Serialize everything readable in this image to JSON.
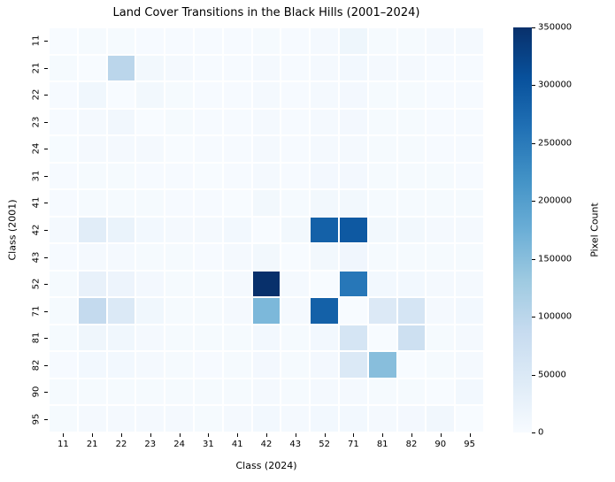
{
  "title": "Land Cover Transitions in the Black Hills (2001–2024)",
  "chart_data": {
    "type": "heatmap",
    "title": "Land Cover Transitions in the Black Hills (2001–2024)",
    "xlabel": "Class (2024)",
    "ylabel": "Class (2001)",
    "colorbar_label": "Pixel Count",
    "x_categories": [
      "11",
      "21",
      "22",
      "23",
      "24",
      "31",
      "41",
      "42",
      "43",
      "52",
      "71",
      "81",
      "82",
      "90",
      "95"
    ],
    "y_categories": [
      "11",
      "21",
      "22",
      "23",
      "24",
      "31",
      "41",
      "42",
      "43",
      "52",
      "71",
      "81",
      "82",
      "90",
      "95"
    ],
    "vmin": 0,
    "vmax": 350000,
    "colorbar_ticks": [
      0,
      50000,
      100000,
      150000,
      200000,
      250000,
      300000,
      350000
    ],
    "grid_line_color": "#ffffff",
    "colorscale": {
      "name": "Blues",
      "anchors": [
        [
          0.0,
          "#f7fbff"
        ],
        [
          0.125,
          "#deebf7"
        ],
        [
          0.25,
          "#c6dbef"
        ],
        [
          0.375,
          "#9ecae1"
        ],
        [
          0.5,
          "#6baed6"
        ],
        [
          0.625,
          "#4292c6"
        ],
        [
          0.75,
          "#2171b5"
        ],
        [
          0.875,
          "#08519c"
        ],
        [
          1.0,
          "#08306b"
        ]
      ]
    },
    "values": [
      [
        0,
        3000,
        3000,
        2000,
        2000,
        2000,
        2000,
        4000,
        2000,
        6000,
        15000,
        3000,
        3000,
        5000,
        6000
      ],
      [
        3000,
        0,
        100000,
        9000,
        6000,
        2000,
        2000,
        5000,
        2000,
        6000,
        8000,
        5000,
        5000,
        2000,
        2000
      ],
      [
        2000,
        12000,
        0,
        9000,
        4000,
        2000,
        2000,
        5000,
        2000,
        5000,
        7000,
        4000,
        4000,
        2000,
        2000
      ],
      [
        2000,
        6000,
        10000,
        0,
        4000,
        2000,
        2000,
        6000,
        2000,
        6000,
        7000,
        4000,
        4000,
        2000,
        2000
      ],
      [
        1000,
        5000,
        6000,
        5000,
        0,
        2000,
        2000,
        5000,
        2000,
        5000,
        6000,
        3000,
        3000,
        2000,
        2000
      ],
      [
        2000,
        3000,
        3000,
        2000,
        2000,
        0,
        2000,
        6000,
        2000,
        7000,
        7000,
        3000,
        3000,
        3000,
        2000
      ],
      [
        2000,
        4000,
        4000,
        3000,
        2000,
        2000,
        0,
        9000,
        4000,
        9000,
        9000,
        4000,
        4000,
        4000,
        3000
      ],
      [
        5000,
        38000,
        22000,
        8000,
        5000,
        5000,
        8000,
        0,
        9000,
        285000,
        295000,
        9000,
        9000,
        6000,
        5000
      ],
      [
        2000,
        5000,
        5000,
        4000,
        3000,
        2000,
        5000,
        9000,
        0,
        9000,
        13000,
        4000,
        4000,
        4000,
        3000
      ],
      [
        3000,
        26000,
        18000,
        7000,
        4000,
        4000,
        5000,
        350000,
        5000,
        0,
        255000,
        8000,
        8000,
        5000,
        5000
      ],
      [
        4000,
        90000,
        50000,
        12000,
        4000,
        4000,
        5000,
        160000,
        5000,
        285000,
        0,
        48000,
        60000,
        5000,
        8000
      ],
      [
        3000,
        14000,
        12000,
        5000,
        4000,
        3000,
        4000,
        8000,
        4000,
        8000,
        60000,
        0,
        75000,
        4000,
        5000
      ],
      [
        2000,
        8000,
        8000,
        5000,
        4000,
        2000,
        4000,
        7000,
        4000,
        7000,
        50000,
        150000,
        0,
        4000,
        5000
      ],
      [
        3000,
        4000,
        4000,
        3000,
        3000,
        3000,
        4000,
        6000,
        4000,
        6000,
        6000,
        4000,
        4000,
        0,
        8000
      ],
      [
        4000,
        6000,
        6000,
        5000,
        5000,
        4000,
        5000,
        8000,
        5000,
        8000,
        8000,
        6000,
        7000,
        10000,
        0
      ]
    ]
  }
}
